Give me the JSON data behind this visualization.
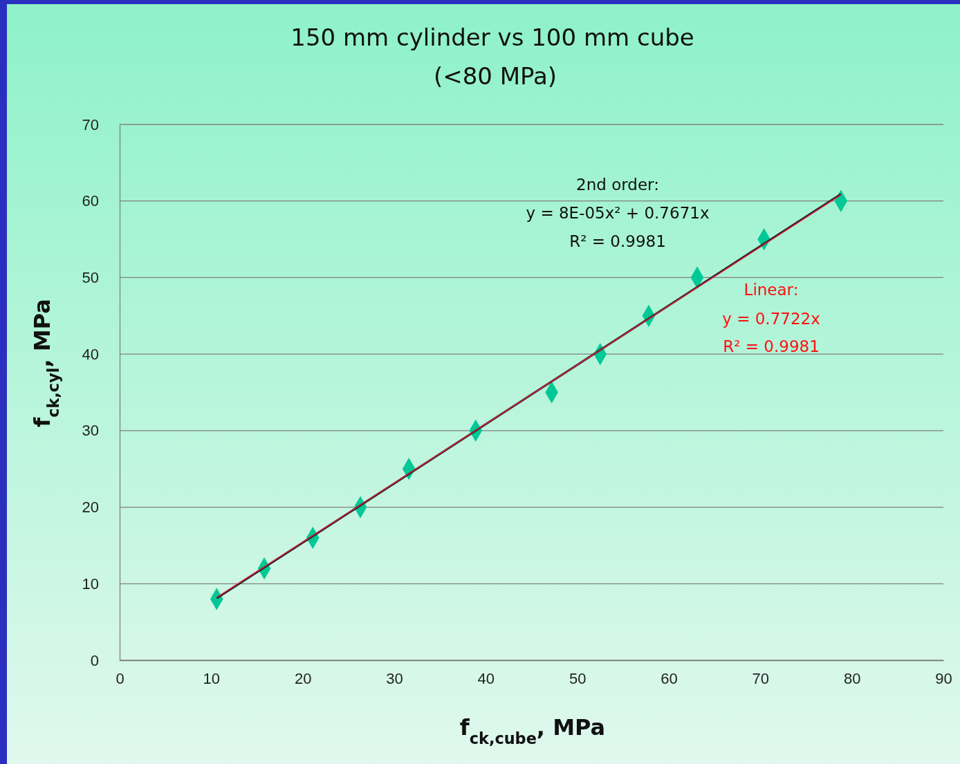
{
  "chart_data": {
    "type": "scatter",
    "title": "150 mm cylinder vs 100 mm cube",
    "subtitle": "(<80 MPa)",
    "xlabel": "f$_{ck,cube}$, MPa",
    "ylabel": "f$_{ck,cyl}$, MPa",
    "xlim": [
      0,
      90
    ],
    "xticks": [
      0,
      10,
      20,
      30,
      40,
      50,
      60,
      70,
      80,
      90
    ],
    "ylim": [
      0,
      70
    ],
    "yticks": [
      0,
      10,
      20,
      30,
      40,
      50,
      60,
      70
    ],
    "grid": "y",
    "marker": "diamond",
    "series": [
      {
        "color": "#00c896",
        "x": [
          10.6,
          15.8,
          21.1,
          26.3,
          31.6,
          38.9,
          47.2,
          52.5,
          57.8,
          63.1,
          70.4,
          78.8
        ],
        "values": [
          8,
          12,
          16,
          20,
          25,
          30,
          35,
          40,
          45,
          50,
          55,
          60
        ]
      },
      {
        "type": "line",
        "color": "#202020",
        "marker": "none",
        "line_style": "solid",
        "x": [
          10.6,
          30,
          50,
          70,
          78.8
        ],
        "values": [
          8.1,
          23.1,
          38.6,
          54.1,
          60.9
        ]
      },
      {
        "type": "line",
        "color": "#e0203c",
        "marker": "none",
        "line_style": "solid",
        "x": [
          10.6,
          78.8
        ],
        "values": [
          8.2,
          60.8
        ]
      }
    ],
    "annotations": [
      "2nd order:",
      "y = 8E-05x² + 0.7671x",
      "R² = 0.9981",
      "Linear:",
      "y = 0.7722x",
      "R² = 0.9981"
    ]
  }
}
